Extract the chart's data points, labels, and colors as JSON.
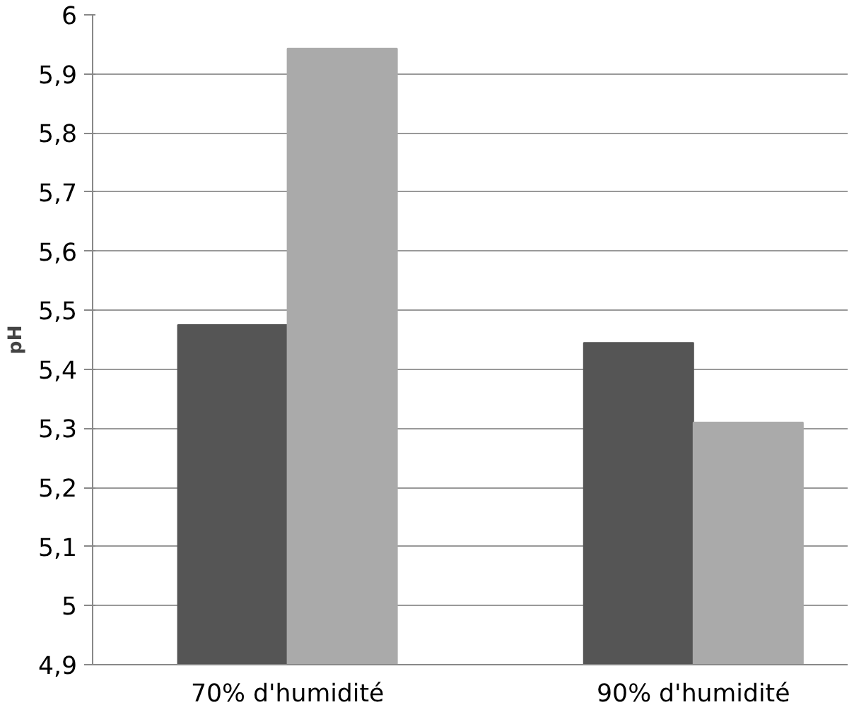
{
  "chart_data": {
    "type": "bar",
    "ylabel": "pH",
    "categories": [
      "70% d'humidité",
      "90% d'humidité"
    ],
    "series": [
      {
        "color": "#555555",
        "values": [
          5.475,
          5.445
        ]
      },
      {
        "color": "#aaaaaa",
        "values": [
          5.943,
          5.31
        ]
      }
    ],
    "ylim": [
      4.9,
      6
    ],
    "yticks": [
      {
        "value": 4.9,
        "label": "4,9"
      },
      {
        "value": 5,
        "label": "5"
      },
      {
        "value": 5.1,
        "label": "5,1"
      },
      {
        "value": 5.2,
        "label": "5,2"
      },
      {
        "value": 5.3,
        "label": "5,3"
      },
      {
        "value": 5.4,
        "label": "5,4"
      },
      {
        "value": 5.5,
        "label": "5,5"
      },
      {
        "value": 5.6,
        "label": "5,6"
      },
      {
        "value": 5.7,
        "label": "5,7"
      },
      {
        "value": 5.8,
        "label": "5,8"
      },
      {
        "value": 5.9,
        "label": "5,9"
      },
      {
        "value": 6,
        "label": "6"
      }
    ],
    "grid": "y"
  }
}
